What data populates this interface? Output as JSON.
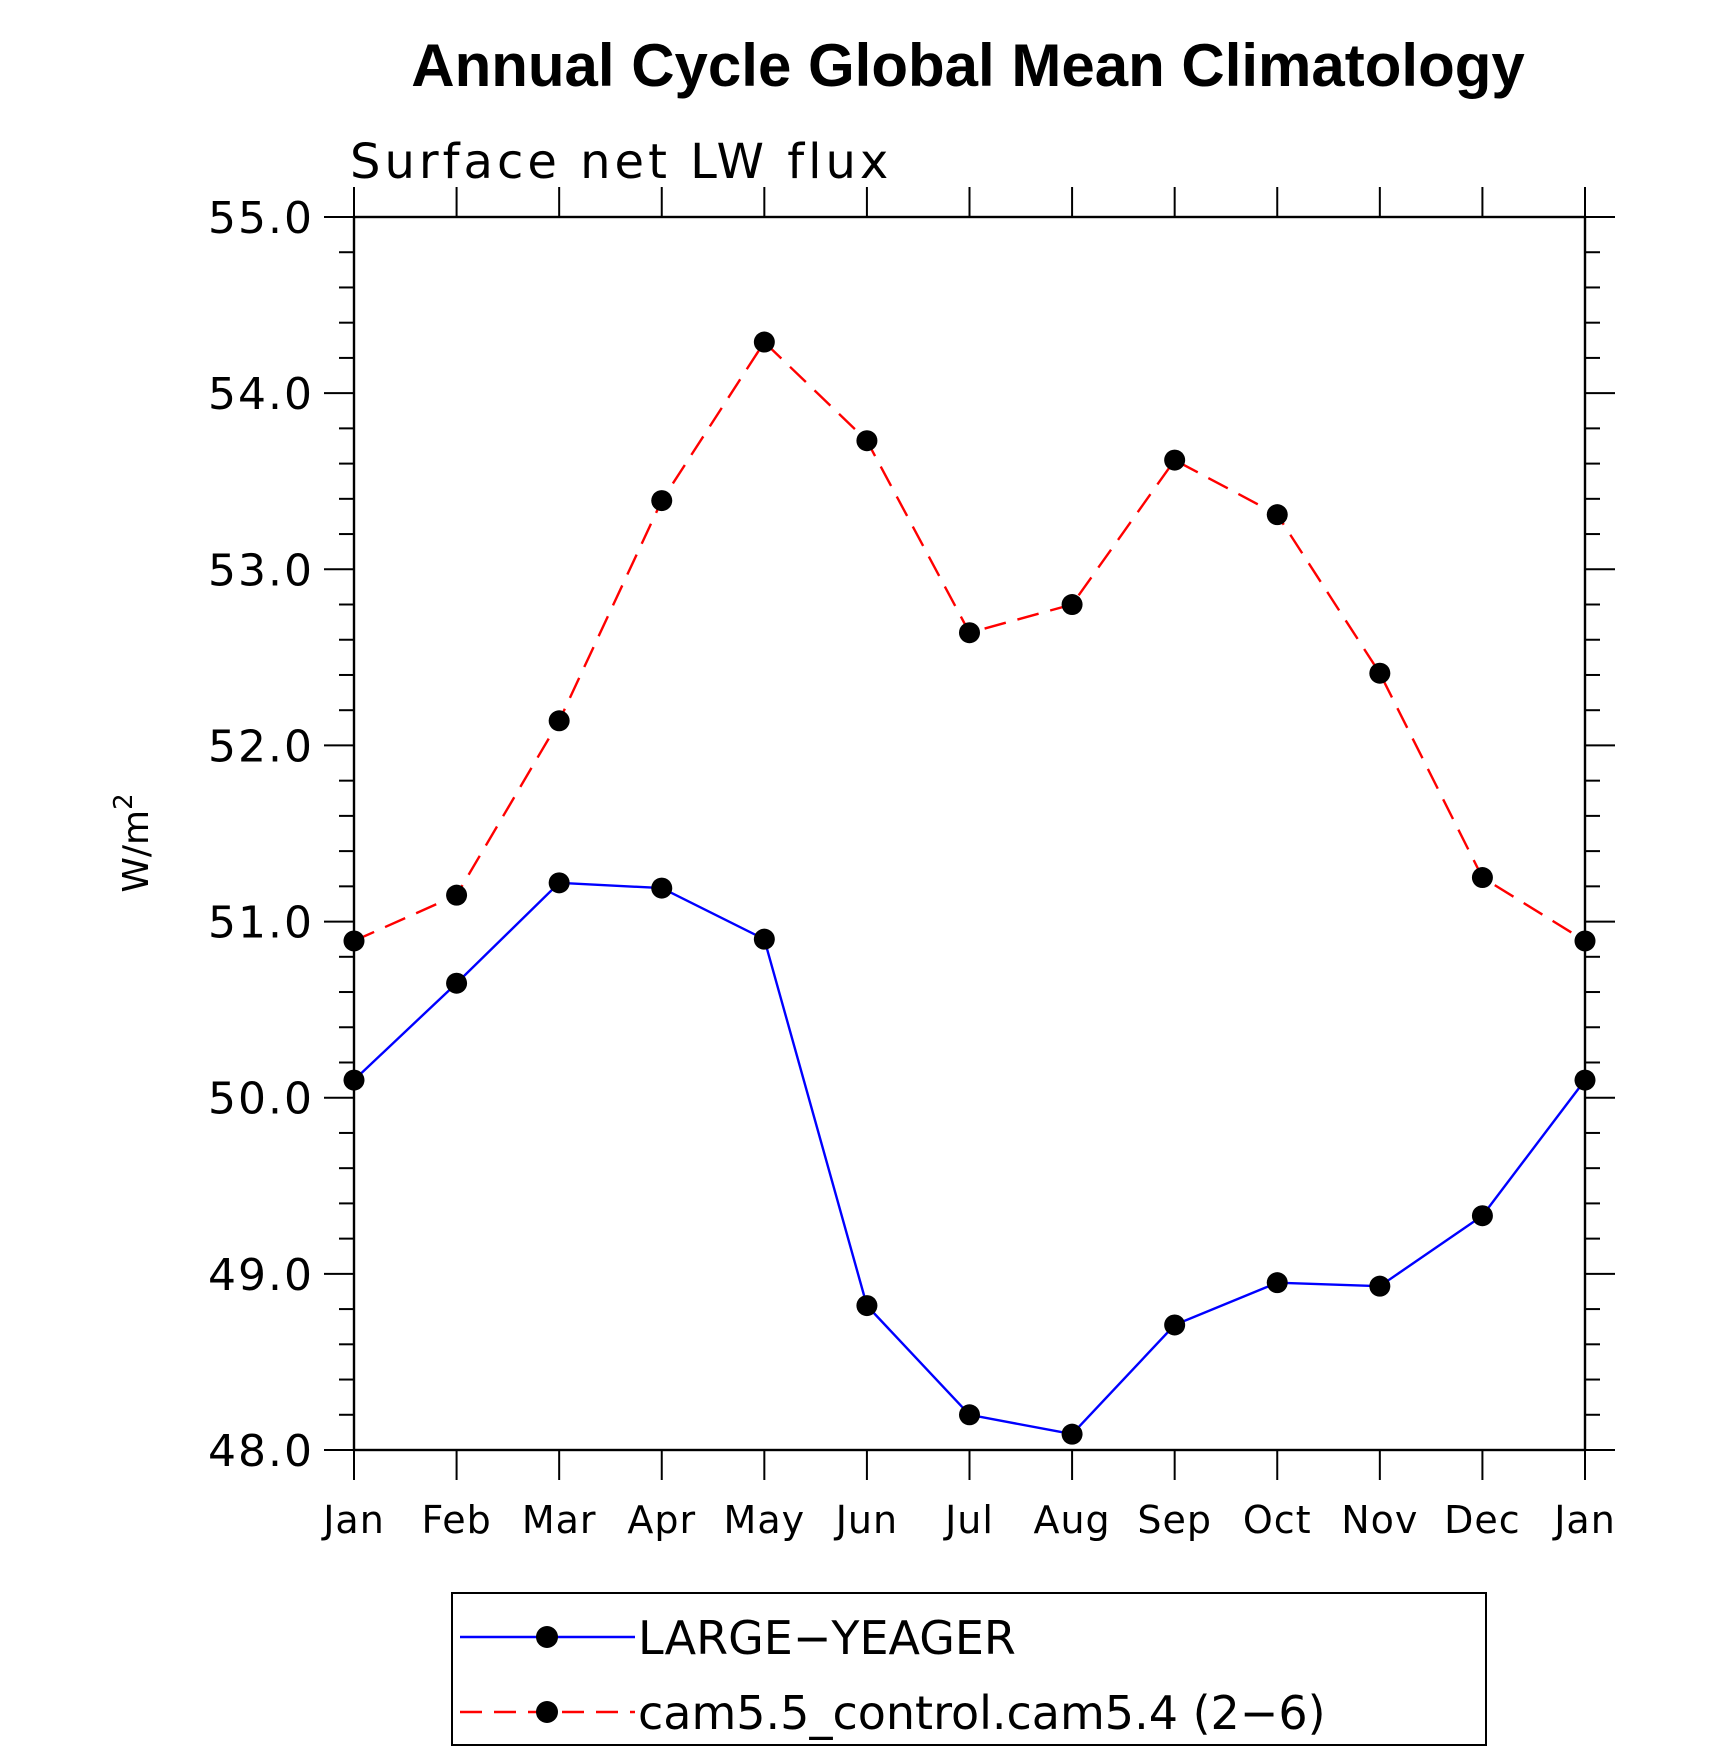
{
  "chart_data": {
    "type": "line",
    "title": "Annual Cycle Global Mean Climatology",
    "subtitle": "Surface net LW flux",
    "ylabel": "W/m",
    "ylabel_sup": "2",
    "ylim": [
      48.0,
      55.0
    ],
    "yticks": [
      "48.0",
      "49.0",
      "50.0",
      "51.0",
      "52.0",
      "53.0",
      "54.0",
      "55.0"
    ],
    "categories": [
      "Jan",
      "Feb",
      "Mar",
      "Apr",
      "May",
      "Jun",
      "Jul",
      "Aug",
      "Sep",
      "Oct",
      "Nov",
      "Dec",
      "Jan"
    ],
    "grid": false,
    "legend_placement": "bottom",
    "series": [
      {
        "name": "LARGE−YEAGER",
        "color": "#0000ff",
        "dash": "solid",
        "marker": "filled-circle",
        "values": [
          50.1,
          50.65,
          51.22,
          51.19,
          50.9,
          48.82,
          48.2,
          48.09,
          48.71,
          48.95,
          48.93,
          49.33,
          50.1
        ]
      },
      {
        "name": "cam5.5_control.cam5.4 (2−6)",
        "color": "#ff0000",
        "dash": "dashed",
        "marker": "filled-circle",
        "values": [
          50.89,
          51.15,
          52.14,
          53.39,
          54.29,
          53.73,
          52.64,
          52.8,
          53.62,
          53.31,
          52.41,
          51.25,
          50.89
        ]
      }
    ]
  }
}
